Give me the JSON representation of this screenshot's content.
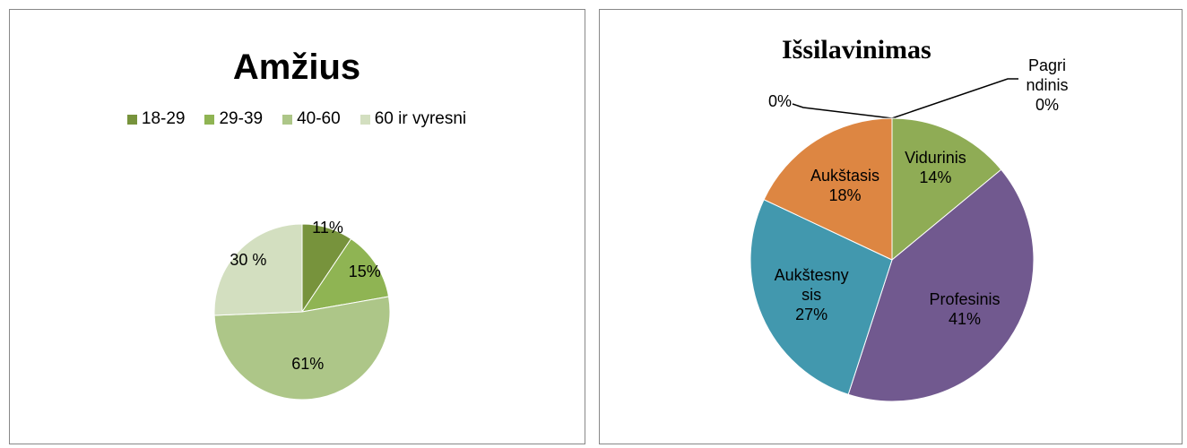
{
  "chart_data": [
    {
      "type": "pie",
      "title": "Amžius",
      "categories": [
        "18-29",
        "29-39",
        "40-60",
        "60 ir vyresni"
      ],
      "values": [
        11,
        15,
        61,
        30
      ],
      "value_labels": [
        "11%",
        "15%",
        "61%",
        "30 %"
      ],
      "colors": [
        "#77933c",
        "#8fb453",
        "#adc688",
        "#d3dfc0"
      ],
      "legend": "top"
    },
    {
      "type": "pie",
      "title": "Išsilavinimas",
      "categories": [
        null,
        "Pagrindinis",
        "Vidurinis",
        "Profesinis",
        "Aukštesnysis",
        "Aukštasis"
      ],
      "values": [
        0,
        0,
        14,
        41,
        27,
        18
      ],
      "value_labels": [
        "0%",
        "0%",
        "14%",
        "41%",
        "27%",
        "18%"
      ],
      "colors": [
        "#4f81bd",
        "#c0504d",
        "#8fac55",
        "#71598f",
        "#4298ae",
        "#dd8642"
      ]
    }
  ]
}
